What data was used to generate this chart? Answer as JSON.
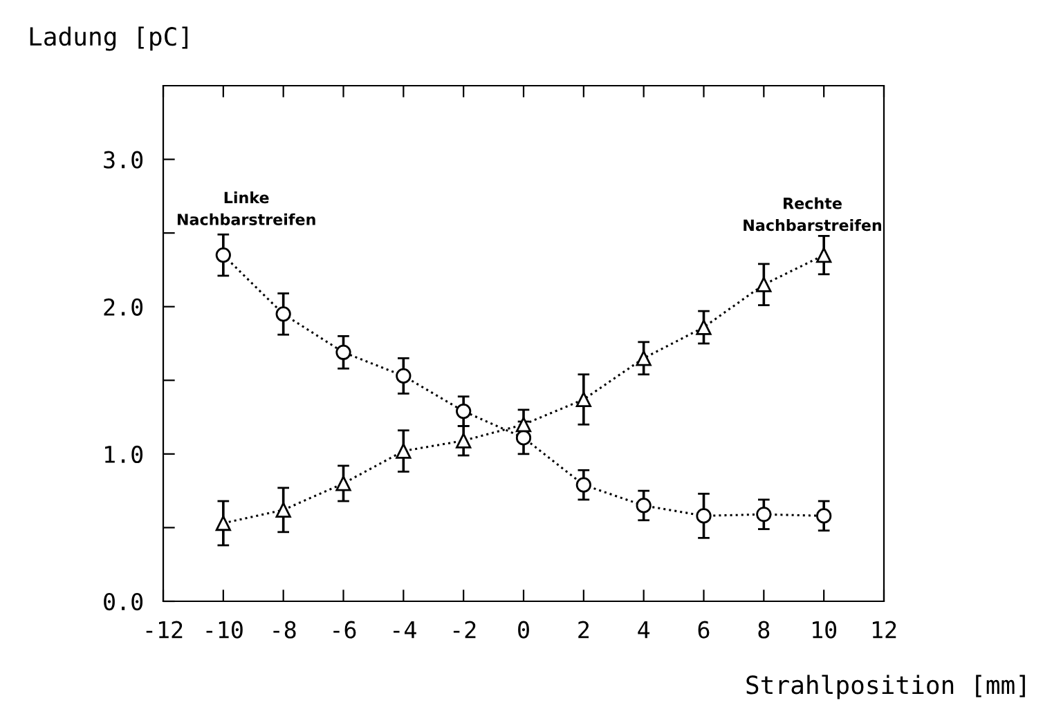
{
  "chart_data": {
    "type": "line",
    "xlabel": "Strahlposition [mm]",
    "ylabel": "Ladung [pC]",
    "x": [
      -10,
      -8,
      -6,
      -4,
      -2,
      0,
      2,
      4,
      6,
      8,
      10
    ],
    "xlim": [
      -12,
      12
    ],
    "xticks": [
      -12,
      -10,
      -8,
      -6,
      -4,
      -2,
      0,
      2,
      4,
      6,
      8,
      10,
      12
    ],
    "ylim": [
      0,
      3.5
    ],
    "yticks": [
      {
        "value": 0,
        "label": "0.0"
      },
      {
        "value": 0.5,
        "label": null
      },
      {
        "value": 1,
        "label": "1.0"
      },
      {
        "value": 1.5,
        "label": null
      },
      {
        "value": 2,
        "label": "2.0"
      },
      {
        "value": 2.5,
        "label": null
      },
      {
        "value": 3,
        "label": "3.0"
      }
    ],
    "line_style": "dotted",
    "grid": false,
    "legend": false,
    "series": [
      {
        "name": "Linke\nNachbarstreifen",
        "color": "#000000",
        "marker": "circle",
        "values": [
          2.35,
          1.95,
          1.69,
          1.53,
          1.29,
          1.11,
          0.79,
          0.65,
          0.58,
          0.59,
          0.58
        ],
        "errors": [
          0.14,
          0.14,
          0.11,
          0.12,
          0.1,
          0.11,
          0.1,
          0.1,
          0.15,
          0.1,
          0.1
        ]
      },
      {
        "name": "Rechte\nNachbarstreifen",
        "color": "#000000",
        "marker": "triangle",
        "values": [
          0.53,
          0.62,
          0.8,
          1.02,
          1.09,
          1.2,
          1.37,
          1.65,
          1.86,
          2.15,
          2.35
        ],
        "errors": [
          0.15,
          0.15,
          0.12,
          0.14,
          0.1,
          0.1,
          0.17,
          0.11,
          0.11,
          0.14,
          0.13
        ]
      }
    ]
  }
}
